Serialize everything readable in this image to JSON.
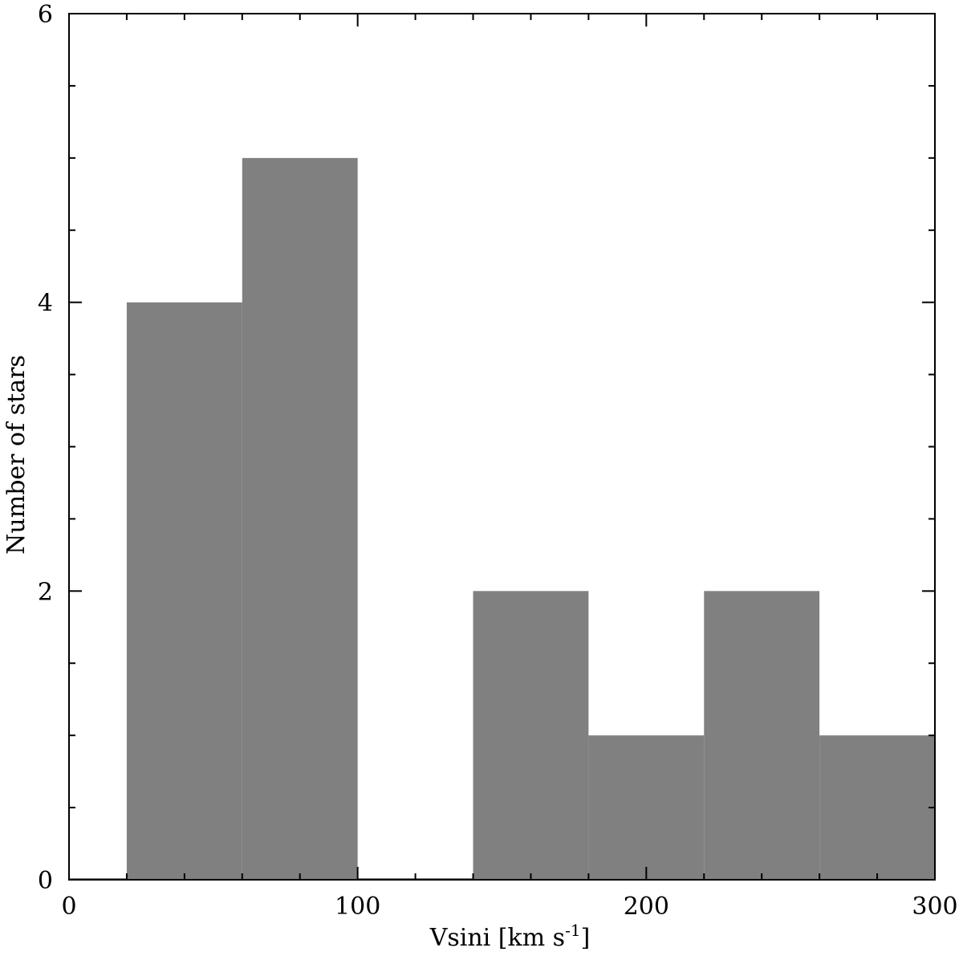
{
  "chart_data": {
    "type": "bar",
    "bins": [
      {
        "x0": 0,
        "x1": 20,
        "count": 0
      },
      {
        "x0": 20,
        "x1": 60,
        "count": 4
      },
      {
        "x0": 60,
        "x1": 100,
        "count": 5
      },
      {
        "x0": 100,
        "x1": 140,
        "count": 0
      },
      {
        "x0": 140,
        "x1": 180,
        "count": 2
      },
      {
        "x0": 180,
        "x1": 220,
        "count": 1
      },
      {
        "x0": 220,
        "x1": 260,
        "count": 2
      },
      {
        "x0": 260,
        "x1": 300,
        "count": 1
      }
    ],
    "xlim": [
      0,
      300
    ],
    "ylim": [
      0,
      6
    ],
    "xticks": [
      0,
      100,
      200,
      300
    ],
    "yticks": [
      0,
      2,
      4,
      6
    ],
    "x_minor_step": 20,
    "y_minor_step": 0.5,
    "xlabel_main": "Vsini [km s",
    "xlabel_sup": "-1",
    "xlabel_end": "]",
    "ylabel": "Number of stars",
    "grid": false,
    "legend": "none",
    "bar_color": "#808080"
  }
}
